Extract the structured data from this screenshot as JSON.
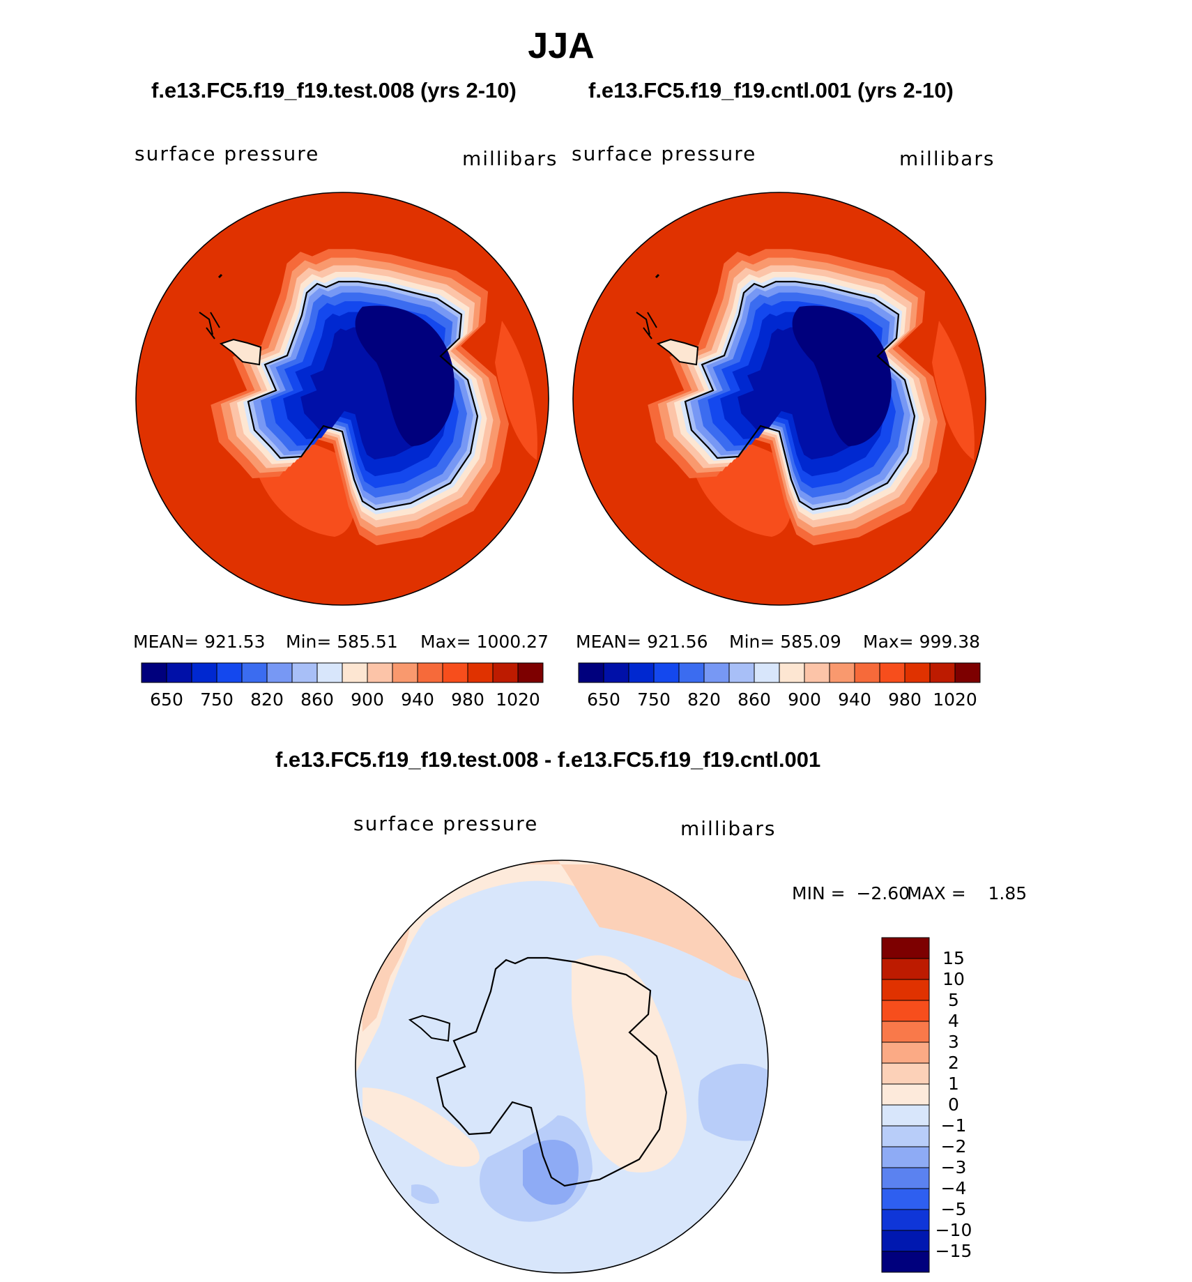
{
  "page": {
    "title": "JJA"
  },
  "chart_data": [
    {
      "type": "heatmap",
      "projection": "south-polar-stereographic",
      "title": "f.e13.FC5.f19_f19.test.008 (yrs 2-10)",
      "left_label": "surface pressure",
      "right_label": "millibars",
      "stats": {
        "mean_label": "MEAN=",
        "mean": "921.53",
        "min_label": "Min=",
        "min": "585.51",
        "max_label": "Max=",
        "max": "1000.27"
      },
      "levels": [
        650,
        700,
        750,
        800,
        820,
        840,
        860,
        880,
        900,
        920,
        940,
        960,
        980,
        1000,
        1020
      ],
      "tick_labels": [
        "650",
        "750",
        "820",
        "860",
        "900",
        "940",
        "980",
        "1020"
      ],
      "colors": [
        "#00007d",
        "#0010a8",
        "#0028d0",
        "#1448ee",
        "#3b6cf0",
        "#7798f4",
        "#a8bff7",
        "#d8e6fb",
        "#fde6d2",
        "#fcc4a8",
        "#f9996e",
        "#f66a3a",
        "#f74e1c",
        "#e03200",
        "#bd1b00",
        "#7d0000"
      ]
    },
    {
      "type": "heatmap",
      "projection": "south-polar-stereographic",
      "title": "f.e13.FC5.f19_f19.cntl.001 (yrs 2-10)",
      "left_label": "surface pressure",
      "right_label": "millibars",
      "stats": {
        "mean_label": "MEAN=",
        "mean": "921.56",
        "min_label": "Min=",
        "min": "585.09",
        "max_label": "Max=",
        "max": "999.38"
      },
      "levels": [
        650,
        700,
        750,
        800,
        820,
        840,
        860,
        880,
        900,
        920,
        940,
        960,
        980,
        1000,
        1020
      ],
      "tick_labels": [
        "650",
        "750",
        "820",
        "860",
        "900",
        "940",
        "980",
        "1020"
      ],
      "colors": [
        "#00007d",
        "#0010a8",
        "#0028d0",
        "#1448ee",
        "#3b6cf0",
        "#7798f4",
        "#a8bff7",
        "#d8e6fb",
        "#fde6d2",
        "#fcc4a8",
        "#f9996e",
        "#f66a3a",
        "#f74e1c",
        "#e03200",
        "#bd1b00",
        "#7d0000"
      ]
    },
    {
      "type": "heatmap",
      "projection": "south-polar-stereographic",
      "title": "f.e13.FC5.f19_f19.test.008 - f.e13.FC5.f19_f19.cntl.001",
      "left_label": "surface pressure",
      "right_label": "millibars",
      "stats": {
        "min_label": "MIN =",
        "min": "−2.60",
        "max_label": "MAX =",
        "max": "1.85"
      },
      "levels": [
        "15",
        "10",
        "5",
        "4",
        "3",
        "2",
        "1",
        "0",
        "−1",
        "−2",
        "−3",
        "−4",
        "−5",
        "−10",
        "−15"
      ],
      "colors": [
        "#7d0000",
        "#bd1b00",
        "#e03200",
        "#f74e1c",
        "#f9794a",
        "#fbaa85",
        "#fcd1b8",
        "#fdeadb",
        "#d8e6fb",
        "#b8cdf9",
        "#8eabf5",
        "#5b82f0",
        "#2e5ff0",
        "#0f36d8",
        "#0018b0",
        "#00007d"
      ]
    }
  ]
}
